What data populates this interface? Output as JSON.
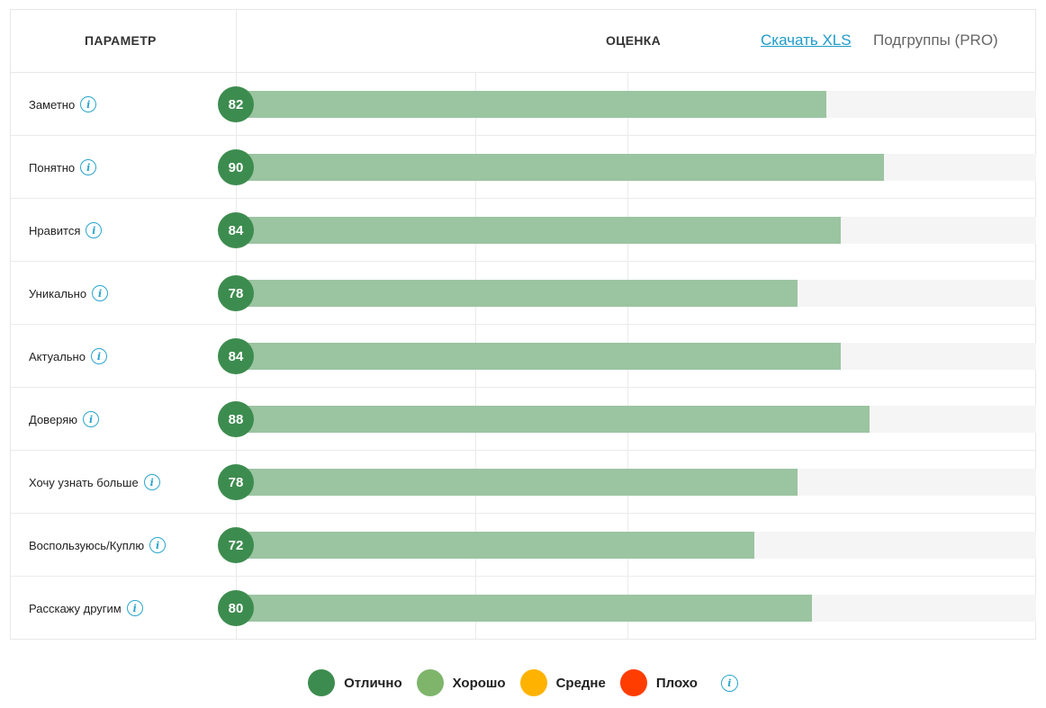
{
  "header": {
    "param_label": "ПАРАМЕТР",
    "score_label": "ОЦЕНКА",
    "download_label": "Скачать XLS",
    "subgroups_label": "Подгруппы (PRO)"
  },
  "colors": {
    "excellent": "#3d8c4f",
    "good": "#7eb56b",
    "average": "#ffb300",
    "bad": "#ff3d00",
    "bar_fill": "#9bc4a1",
    "bar_track": "#f5f5f5",
    "accent": "#1f9bc9"
  },
  "scale_max": 100,
  "rows": [
    {
      "label": "Заметно",
      "score": 82
    },
    {
      "label": "Понятно",
      "score": 90
    },
    {
      "label": "Нравится",
      "score": 84
    },
    {
      "label": "Уникально",
      "score": 78
    },
    {
      "label": "Актуально",
      "score": 84
    },
    {
      "label": "Доверяю",
      "score": 88
    },
    {
      "label": "Хочу узнать больше",
      "score": 78
    },
    {
      "label": "Воспользуюсь/Куплю",
      "score": 72
    },
    {
      "label": "Расскажу другим",
      "score": 80
    }
  ],
  "legend": [
    {
      "label": "Отлично",
      "color": "#3d8c4f"
    },
    {
      "label": "Хорошо",
      "color": "#7eb56b"
    },
    {
      "label": "Средне",
      "color": "#ffb300"
    },
    {
      "label": "Плохо",
      "color": "#ff3d00"
    }
  ],
  "info_glyph": "i"
}
